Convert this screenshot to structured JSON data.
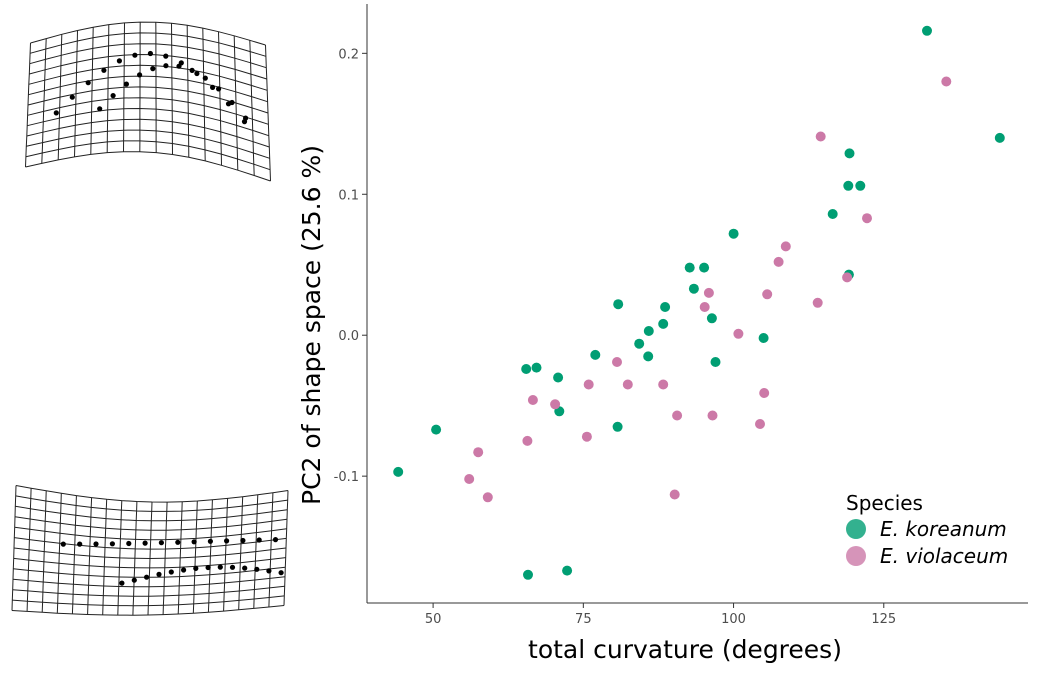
{
  "chart_data": {
    "type": "scatter",
    "xlabel": "total curvature (degrees)",
    "ylabel": "PC2 of shape space (25.6 %)",
    "xlim": [
      39,
      149
    ],
    "ylim": [
      -0.19,
      0.235
    ],
    "x_ticks": [
      50,
      75,
      100,
      125
    ],
    "y_ticks": [
      -0.1,
      0.0,
      0.1,
      0.2
    ],
    "x_tick_labels": [
      "50",
      "75",
      "100",
      "125"
    ],
    "y_tick_labels": [
      "-0.1",
      "0.0",
      "0.1",
      "0.2"
    ],
    "grid": false,
    "legend": {
      "title": "Species",
      "position": "bottom-right"
    },
    "series": [
      {
        "name": "E. koreanum",
        "color": "#009E73",
        "points": [
          [
            44.2,
            -0.097
          ],
          [
            50.5,
            -0.067
          ],
          [
            65.5,
            -0.024
          ],
          [
            65.8,
            -0.17
          ],
          [
            67.2,
            -0.023
          ],
          [
            70.8,
            -0.03
          ],
          [
            71.0,
            -0.054
          ],
          [
            72.3,
            -0.167
          ],
          [
            77.0,
            -0.014
          ],
          [
            80.8,
            0.022
          ],
          [
            80.7,
            -0.065
          ],
          [
            84.3,
            -0.006
          ],
          [
            85.9,
            0.003
          ],
          [
            85.8,
            -0.015
          ],
          [
            88.3,
            0.008
          ],
          [
            88.6,
            0.02
          ],
          [
            92.7,
            0.048
          ],
          [
            93.4,
            0.033
          ],
          [
            95.1,
            0.048
          ],
          [
            96.4,
            0.012
          ],
          [
            97.0,
            -0.019
          ],
          [
            100.0,
            0.072
          ],
          [
            105.0,
            -0.002
          ],
          [
            116.5,
            0.086
          ],
          [
            119.1,
            0.106
          ],
          [
            119.2,
            0.043
          ],
          [
            119.3,
            0.129
          ],
          [
            121.1,
            0.106
          ],
          [
            132.2,
            0.216
          ],
          [
            144.3,
            0.14
          ]
        ]
      },
      {
        "name": "E. violaceum",
        "color": "#CC79A7",
        "points": [
          [
            56.0,
            -0.102
          ],
          [
            57.5,
            -0.083
          ],
          [
            59.1,
            -0.115
          ],
          [
            65.7,
            -0.075
          ],
          [
            66.6,
            -0.046
          ],
          [
            70.3,
            -0.049
          ],
          [
            75.6,
            -0.072
          ],
          [
            75.9,
            -0.035
          ],
          [
            80.6,
            -0.019
          ],
          [
            82.4,
            -0.035
          ],
          [
            88.3,
            -0.035
          ],
          [
            90.2,
            -0.113
          ],
          [
            90.6,
            -0.057
          ],
          [
            95.2,
            0.02
          ],
          [
            95.9,
            0.03
          ],
          [
            96.5,
            -0.057
          ],
          [
            100.8,
            0.001
          ],
          [
            104.4,
            -0.063
          ],
          [
            105.1,
            -0.041
          ],
          [
            105.6,
            0.029
          ],
          [
            107.5,
            0.052
          ],
          [
            108.7,
            0.063
          ],
          [
            114.0,
            0.023
          ],
          [
            114.5,
            0.141
          ],
          [
            118.9,
            0.041
          ],
          [
            122.2,
            0.083
          ],
          [
            135.4,
            0.18
          ]
        ]
      }
    ]
  }
}
